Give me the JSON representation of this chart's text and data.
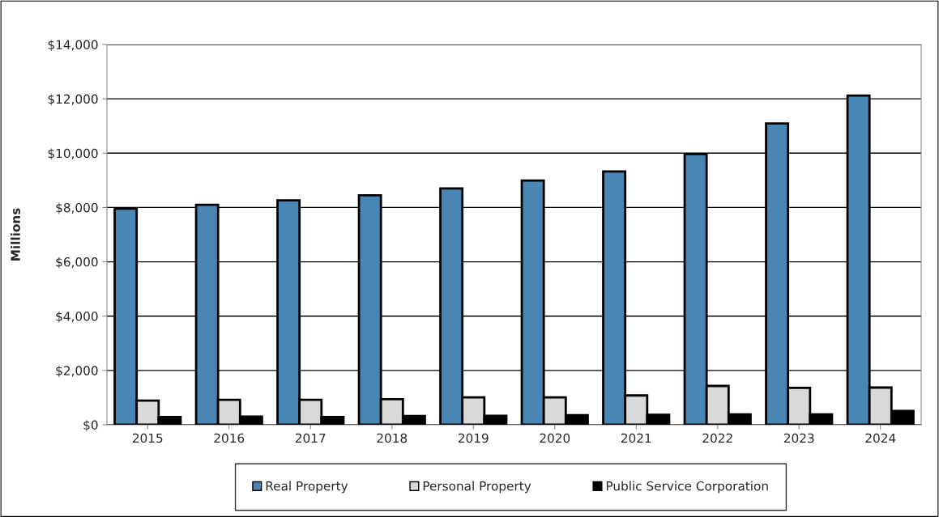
{
  "chart_data": {
    "type": "bar",
    "ylabel": "Millions",
    "categories": [
      "2015",
      "2016",
      "2017",
      "2018",
      "2019",
      "2020",
      "2021",
      "2022",
      "2023",
      "2024"
    ],
    "series": [
      {
        "name": "Real Property",
        "color": "#4a86b4",
        "values": [
          7960,
          8100,
          8260,
          8450,
          8700,
          8990,
          9330,
          9970,
          11090,
          12120
        ]
      },
      {
        "name": "Personal Property",
        "color": "#d9d9d9",
        "values": [
          890,
          920,
          920,
          940,
          1010,
          1010,
          1080,
          1430,
          1360,
          1370
        ]
      },
      {
        "name": "Public Service Corporation",
        "color": "#000000",
        "values": [
          290,
          300,
          290,
          320,
          330,
          350,
          370,
          380,
          380,
          510
        ]
      }
    ],
    "ylim": [
      0,
      14000
    ],
    "yticks": [
      {
        "value": 0,
        "label": "$0"
      },
      {
        "value": 2000,
        "label": "$2,000"
      },
      {
        "value": 4000,
        "label": "$4,000"
      },
      {
        "value": 6000,
        "label": "$6,000"
      },
      {
        "value": 8000,
        "label": "$8,000"
      },
      {
        "value": 10000,
        "label": "$10,000"
      },
      {
        "value": 12000,
        "label": "$12,000"
      },
      {
        "value": 14000,
        "label": "$14,000"
      }
    ],
    "grid": "y",
    "legend": "bottom"
  }
}
